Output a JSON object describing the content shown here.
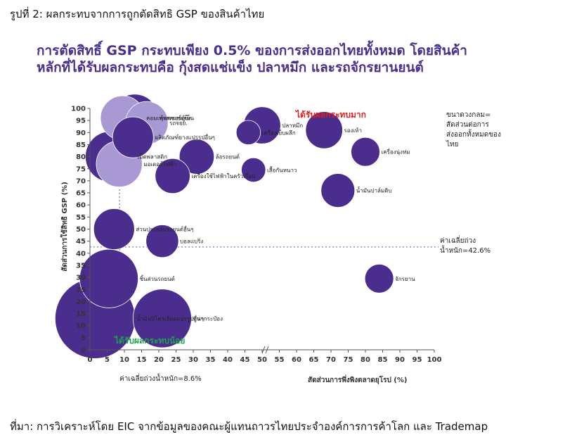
{
  "figure_caption": "รูปที่ 2: ผลกระทบจากการถูกตัดสิทธิ GSP ของสินค้าไทย",
  "source": "ที่มา: การวิเคราะห์โดย EIC จากข้อมูลของคณะผู้แทนถาวรไทยประจำองค์การการค้าโลก และ Trademap",
  "chart_data": {
    "type": "scatter",
    "title_lines": [
      "การตัดสิทธิ์ GSP กระทบเพียง 0.5% ของการส่งออกไทยทั้งหมด โดยสินค้า",
      "หลักที่ได้รับผลกระทบคือ กุ้งสดแช่แข็ง ปลาหมึก และรถจักรยานยนต์"
    ],
    "xlabel": "สัดส่วนการพึ่งพิงตลาดยุโรป (%)",
    "ylabel": "สัดส่วนการใช้สิทธิ GSP (%)",
    "x_ticks": [
      0,
      5,
      10,
      15,
      20,
      25,
      30,
      35,
      40,
      45,
      50,
      55,
      60,
      65,
      70,
      75,
      80,
      85,
      90,
      95,
      100
    ],
    "x_tick_labels": [
      "0",
      "5",
      "10",
      "15",
      "20",
      "25",
      "30",
      "35",
      "40",
      "45",
      "50",
      "55",
      "60",
      "65",
      "70",
      "75",
      "80",
      "85",
      "90",
      "95",
      "100"
    ],
    "y_ticks": [
      0,
      5,
      10,
      15,
      20,
      25,
      30,
      35,
      40,
      45,
      50,
      55,
      60,
      65,
      70,
      75,
      80,
      85,
      90,
      95,
      100
    ],
    "y_tick_labels": [
      "0",
      "5",
      "10",
      "15",
      "20",
      "25",
      "30",
      "35",
      "40",
      "45",
      "50",
      "55",
      "60",
      "65",
      "70",
      "75",
      "80",
      "85",
      "90",
      "95",
      "100"
    ],
    "xlim": [
      0,
      100
    ],
    "ylim": [
      0,
      100
    ],
    "x_axis_break_after": 50,
    "avg_x": 8.6,
    "avg_y": 42.6,
    "avg_x_label": "ค่าเฉลี่ยถ่วงน้ำหนัก=8.6%",
    "avg_y_label_lines": [
      "ค่าเฉลี่ยถ่วง",
      "น้ำหนัก=42.6%"
    ],
    "size_note_lines": [
      "ขนาดวงกลม=",
      "สัดส่วนต่อการ",
      "ส่งออกทั้งหมดของ",
      "ไทย"
    ],
    "region_high_label": "ได้รับผลกระทบมาก",
    "region_low_label": "ได้รับผลกระทบน้อย",
    "colors": {
      "bubble": "#4a2d8c",
      "bubble_light": "#a898d4",
      "high": "#e02020",
      "low": "#22a050",
      "axis": "#555555"
    },
    "points": [
      {
        "name": "คอมเพรสเซอร์ตู้เย็น",
        "x": 9.5,
        "y": 96,
        "size": 12,
        "shade": "light"
      },
      {
        "name": "กุ้งสดแช่แข็ง",
        "x": 13,
        "y": 96,
        "size": 14,
        "shade": "dark"
      },
      {
        "name": "รถจยย.",
        "x": 16.5,
        "y": 94,
        "size": 11,
        "shade": "light"
      },
      {
        "name": "ผลิตภัณฑ์ยางแปรรูปอื่นๆ",
        "x": 12.5,
        "y": 88,
        "size": 10,
        "shade": "dark"
      },
      {
        "name": "เครื่องเย็บผลึก",
        "x": 46,
        "y": 90,
        "size": 3,
        "shade": "dark"
      },
      {
        "name": "ปลาหมึก",
        "x": 50,
        "y": 93,
        "size": 8,
        "shade": "dark"
      },
      {
        "name": "รองเท้า",
        "x": 68,
        "y": 91,
        "size": 8,
        "shade": "dark"
      },
      {
        "name": "เครื่องนุ่งห่ม",
        "x": 80,
        "y": 82,
        "size": 4.5,
        "shade": "dark"
      },
      {
        "name": "เม็ดพลาสติก",
        "x": 6,
        "y": 80,
        "size": 16,
        "shade": "dark"
      },
      {
        "name": "มอเตอร์ไฟฟ้า",
        "x": 8.5,
        "y": 77,
        "size": 13,
        "shade": "light"
      },
      {
        "name": "ล้อรถยนต์",
        "x": 31,
        "y": 80,
        "size": 7,
        "shade": "dark"
      },
      {
        "name": "เสื้อกันหนาว",
        "x": 47.5,
        "y": 74.5,
        "size": 3,
        "shade": "dark"
      },
      {
        "name": "เครื่องใช้ไฟฟ้าในครัวเรือน",
        "x": 24,
        "y": 72,
        "size": 7,
        "shade": "dark"
      },
      {
        "name": "น้ำมันปาล์มดิบ",
        "x": 72,
        "y": 66,
        "size": 6.5,
        "shade": "dark"
      },
      {
        "name": "ส่วนประกอบรถยนต์อื่นๆ",
        "x": 7,
        "y": 50,
        "size": 10,
        "shade": "dark"
      },
      {
        "name": "บอลแบริ่ง",
        "x": 21,
        "y": 45,
        "size": 6,
        "shade": "dark"
      },
      {
        "name": "ชิ้นส่วนรถยนต์",
        "x": 5.5,
        "y": 29.5,
        "size": 22,
        "shade": "dark"
      },
      {
        "name": "จักรยาน",
        "x": 84,
        "y": 29.5,
        "size": 4.5,
        "shade": "dark"
      },
      {
        "name": "น้ำมันปิโตรเลียมแปรรูปอื่นๆ",
        "x": 1.5,
        "y": 13,
        "size": 43,
        "shade": "dark"
      },
      {
        "name": "ทูน่ากระป๋อง",
        "x": 21,
        "y": 13,
        "size": 22,
        "shade": "dark"
      }
    ]
  }
}
